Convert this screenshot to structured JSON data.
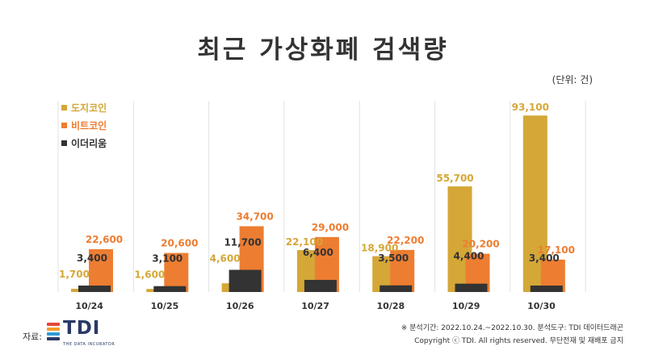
{
  "title": "최근 가상화폐 검색량",
  "unit_label": "(단위: 건)",
  "chart_data": {
    "type": "bar",
    "title": "최근 가상화폐 검색량",
    "categories": [
      "10/24",
      "10/25",
      "10/26",
      "10/27",
      "10/28",
      "10/29",
      "10/30"
    ],
    "series": [
      {
        "name": "도지코인",
        "color": "#d4a737",
        "values": [
          1700,
          1600,
          4600,
          22100,
          18900,
          55700,
          93100
        ]
      },
      {
        "name": "비트코인",
        "color": "#ed7d31",
        "values": [
          22600,
          20600,
          34700,
          29000,
          22200,
          20200,
          17100
        ]
      },
      {
        "name": "이더리움",
        "color": "#333333",
        "values": [
          3400,
          3100,
          11700,
          6400,
          3500,
          4400,
          3400
        ]
      }
    ],
    "value_labels": [
      [
        "1,700",
        "1,600",
        "4,600",
        "22,100",
        "18,900",
        "55,700",
        "93,100"
      ],
      [
        "22,600",
        "20,600",
        "34,700",
        "29,000",
        "22,200",
        "20,200",
        "17,100"
      ],
      [
        "3,400",
        "3,100",
        "11,700",
        "6,400",
        "3,500",
        "4,400",
        "3,400"
      ]
    ],
    "label_colors": [
      "#d4a737",
      "#ed7d31",
      "#333333"
    ],
    "ylim": [
      0,
      100000
    ],
    "grid": "vertical separators",
    "legend_position": "top-left"
  },
  "source": {
    "label": "자료:",
    "logo_text": "TDI",
    "logo_subtext": "THE DATA INCUBATOR",
    "logo_colors": [
      "#e8453c",
      "#f39c2d",
      "#2f9bd6",
      "#2a3a66"
    ]
  },
  "footer": {
    "line1": "※ 분석기간: 2022.10.24.~2022.10.30.  분석도구: TDI 데이터드래곤",
    "line2": "Copyright ⓒ TDI. All rights reserved. 무단전재 및 재배포 금지"
  }
}
